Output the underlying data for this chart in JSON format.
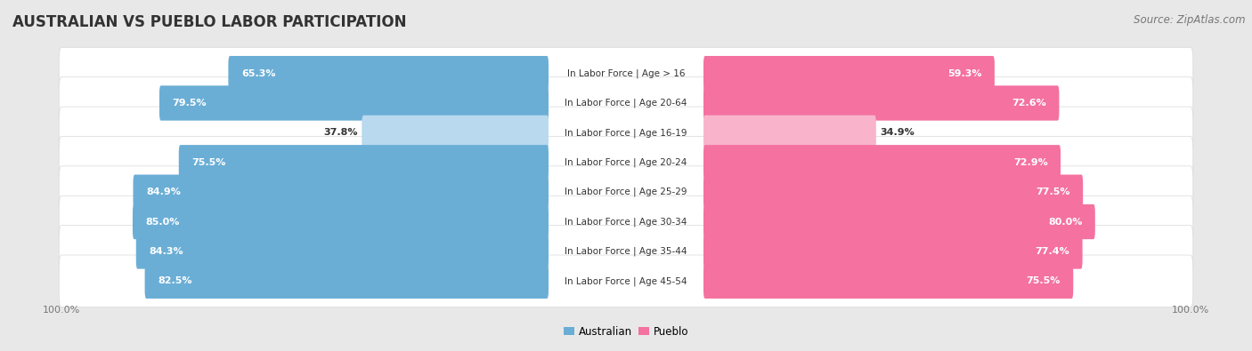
{
  "title": "AUSTRALIAN VS PUEBLO LABOR PARTICIPATION",
  "source": "Source: ZipAtlas.com",
  "categories": [
    "In Labor Force | Age > 16",
    "In Labor Force | Age 20-64",
    "In Labor Force | Age 16-19",
    "In Labor Force | Age 20-24",
    "In Labor Force | Age 25-29",
    "In Labor Force | Age 30-34",
    "In Labor Force | Age 35-44",
    "In Labor Force | Age 45-54"
  ],
  "australian_values": [
    65.3,
    79.5,
    37.8,
    75.5,
    84.9,
    85.0,
    84.3,
    82.5
  ],
  "pueblo_values": [
    59.3,
    72.6,
    34.9,
    72.9,
    77.5,
    80.0,
    77.4,
    75.5
  ],
  "australian_color": "#6aaed6",
  "australian_color_light": "#b8d9ee",
  "pueblo_color": "#f471a0",
  "pueblo_color_light": "#f9b4cc",
  "row_bg_color": "#f2f2f2",
  "row_outline_color": "#d8d8d8",
  "bg_color": "#e8e8e8",
  "label_dark": "#333333",
  "label_mid": "#777777",
  "max_value": 100.0,
  "legend_australian": "Australian",
  "legend_pueblo": "Pueblo",
  "title_fontsize": 12,
  "source_fontsize": 8.5,
  "bar_label_fontsize": 8,
  "category_fontsize": 7.5,
  "axis_label_fontsize": 8
}
